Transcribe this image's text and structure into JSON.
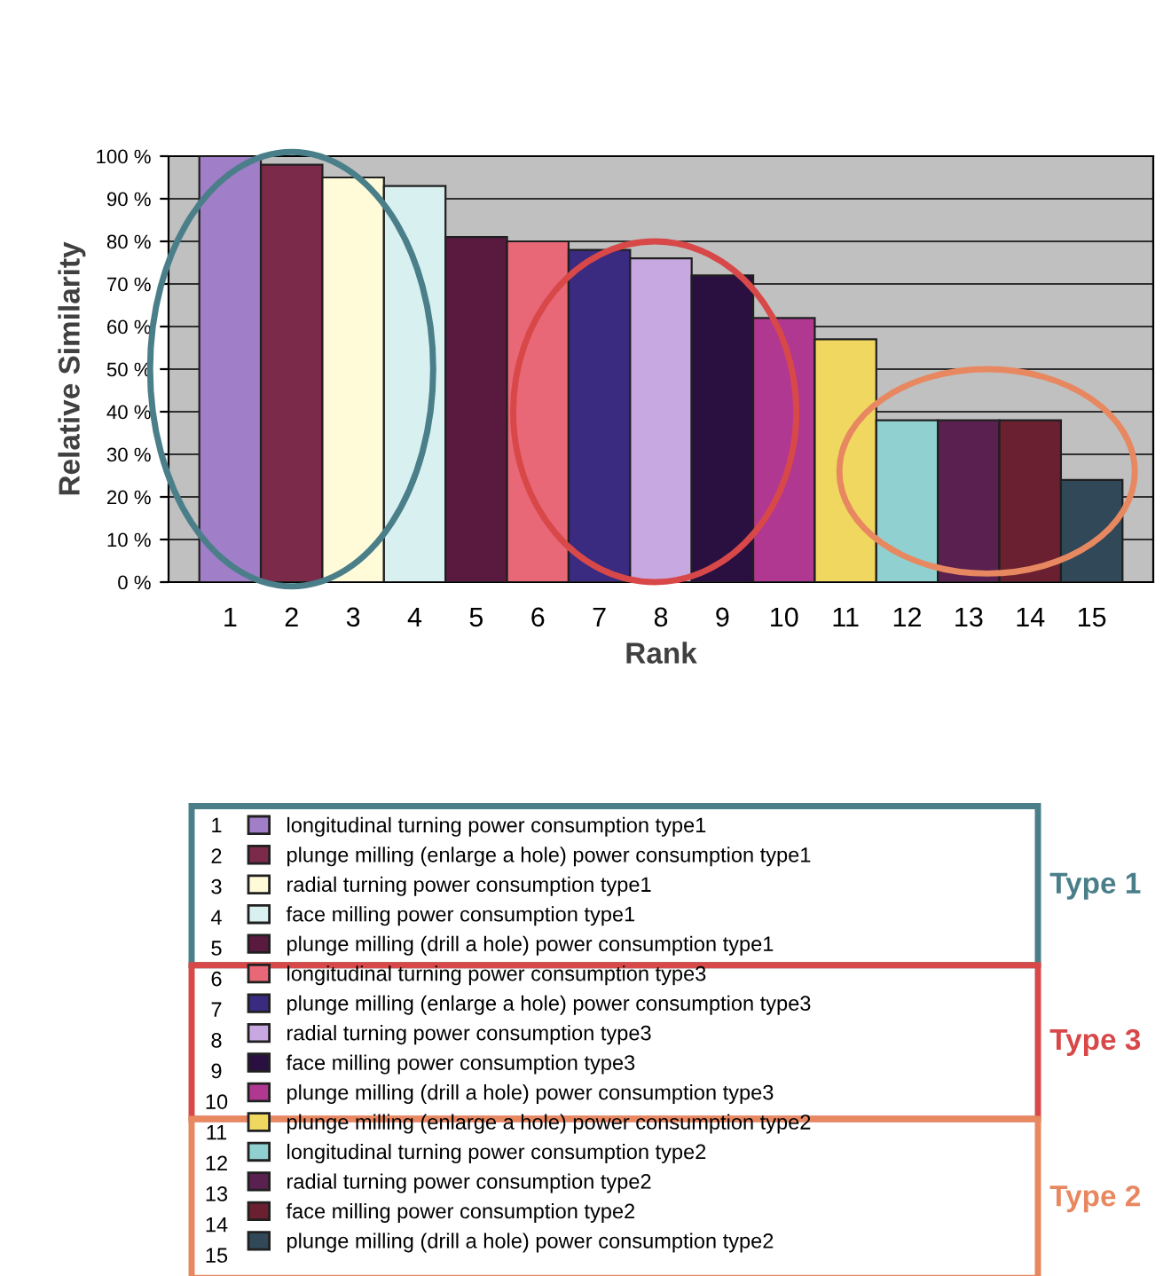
{
  "chart_data": {
    "type": "bar",
    "xlabel": "Rank",
    "ylabel": "Relative Similarity",
    "categories": [
      "1",
      "2",
      "3",
      "4",
      "5",
      "6",
      "7",
      "8",
      "9",
      "10",
      "11",
      "12",
      "13",
      "14",
      "15"
    ],
    "series": [
      {
        "name": "longitudinal turning power consumption type1",
        "color": "#a07ec8",
        "values": [
          100,
          null,
          null,
          null,
          null,
          null,
          null,
          null,
          null,
          null,
          null,
          null,
          null,
          null,
          null
        ]
      },
      {
        "name": "plunge milling (enlarge a hole) power consumption type1",
        "color": "#7b2a4a",
        "values": [
          null,
          98,
          null,
          null,
          null,
          null,
          null,
          null,
          null,
          null,
          null,
          null,
          null,
          null,
          null
        ]
      },
      {
        "name": "radial turning power consumption type1",
        "color": "#fffbd8",
        "values": [
          null,
          null,
          95,
          null,
          null,
          null,
          null,
          null,
          null,
          null,
          null,
          null,
          null,
          null,
          null
        ]
      },
      {
        "name": "face milling power consumption type1",
        "color": "#d8f0f0",
        "values": [
          null,
          null,
          null,
          93,
          null,
          null,
          null,
          null,
          null,
          null,
          null,
          null,
          null,
          null,
          null
        ]
      },
      {
        "name": "plunge milling (drill a hole) power consumption type1",
        "color": "#5a1a40",
        "values": [
          null,
          null,
          null,
          null,
          81,
          null,
          null,
          null,
          null,
          null,
          null,
          null,
          null,
          null,
          null
        ]
      },
      {
        "name": "longitudinal turning power consumption type3",
        "color": "#e86878",
        "values": [
          null,
          null,
          null,
          null,
          null,
          80,
          null,
          null,
          null,
          null,
          null,
          null,
          null,
          null,
          null
        ]
      },
      {
        "name": "plunge milling (enlarge a hole) power consumption type3",
        "color": "#3a2a80",
        "values": [
          null,
          null,
          null,
          null,
          null,
          null,
          78,
          null,
          null,
          null,
          null,
          null,
          null,
          null,
          null
        ]
      },
      {
        "name": "radial turning power consumption type3",
        "color": "#c8a8e0",
        "values": [
          null,
          null,
          null,
          null,
          null,
          null,
          null,
          76,
          null,
          null,
          null,
          null,
          null,
          null,
          null
        ]
      },
      {
        "name": "face milling power consumption type3",
        "color": "#2a1040",
        "values": [
          null,
          null,
          null,
          null,
          null,
          null,
          null,
          null,
          72,
          null,
          null,
          null,
          null,
          null,
          null
        ]
      },
      {
        "name": "plunge milling (drill a hole) power consumption type3",
        "color": "#b03890",
        "values": [
          null,
          null,
          null,
          null,
          null,
          null,
          null,
          null,
          null,
          62,
          null,
          null,
          null,
          null,
          null
        ]
      },
      {
        "name": "plunge milling (enlarge a hole) power consumption type2",
        "color": "#f0d860",
        "values": [
          null,
          null,
          null,
          null,
          null,
          null,
          null,
          null,
          null,
          null,
          57,
          null,
          null,
          null,
          null
        ]
      },
      {
        "name": "longitudinal turning power consumption type2",
        "color": "#90d0d0",
        "values": [
          null,
          null,
          null,
          null,
          null,
          null,
          null,
          null,
          null,
          null,
          null,
          38,
          null,
          null,
          null
        ]
      },
      {
        "name": "radial turning power consumption type2",
        "color": "#5a2050",
        "values": [
          null,
          null,
          null,
          null,
          null,
          null,
          null,
          null,
          null,
          null,
          null,
          null,
          38,
          null,
          null
        ]
      },
      {
        "name": "face milling power consumption type2",
        "color": "#6a2030",
        "values": [
          null,
          null,
          null,
          null,
          null,
          null,
          null,
          null,
          null,
          null,
          null,
          null,
          null,
          38,
          null
        ]
      },
      {
        "name": "plunge milling (drill a hole) power consumption type2",
        "color": "#304858",
        "values": [
          null,
          null,
          null,
          null,
          null,
          null,
          null,
          null,
          null,
          null,
          null,
          null,
          null,
          null,
          24
        ]
      }
    ],
    "ylim": [
      0,
      100
    ],
    "yticks": [
      {
        "value": 0,
        "label": "0 %"
      },
      {
        "value": 10,
        "label": "10 %"
      },
      {
        "value": 20,
        "label": "20 %"
      },
      {
        "value": 30,
        "label": "30 %"
      },
      {
        "value": 40,
        "label": "40 %"
      },
      {
        "value": 50,
        "label": "50 %"
      },
      {
        "value": 60,
        "label": "60 %"
      },
      {
        "value": 70,
        "label": "70 %"
      },
      {
        "value": 80,
        "label": "80 %"
      },
      {
        "value": 90,
        "label": "90 %"
      },
      {
        "value": 100,
        "label": "100 %"
      }
    ],
    "grid": "y",
    "legend": "bottom",
    "annotations": [
      "Type 1",
      "Type 3",
      "Type 2"
    ]
  }
}
